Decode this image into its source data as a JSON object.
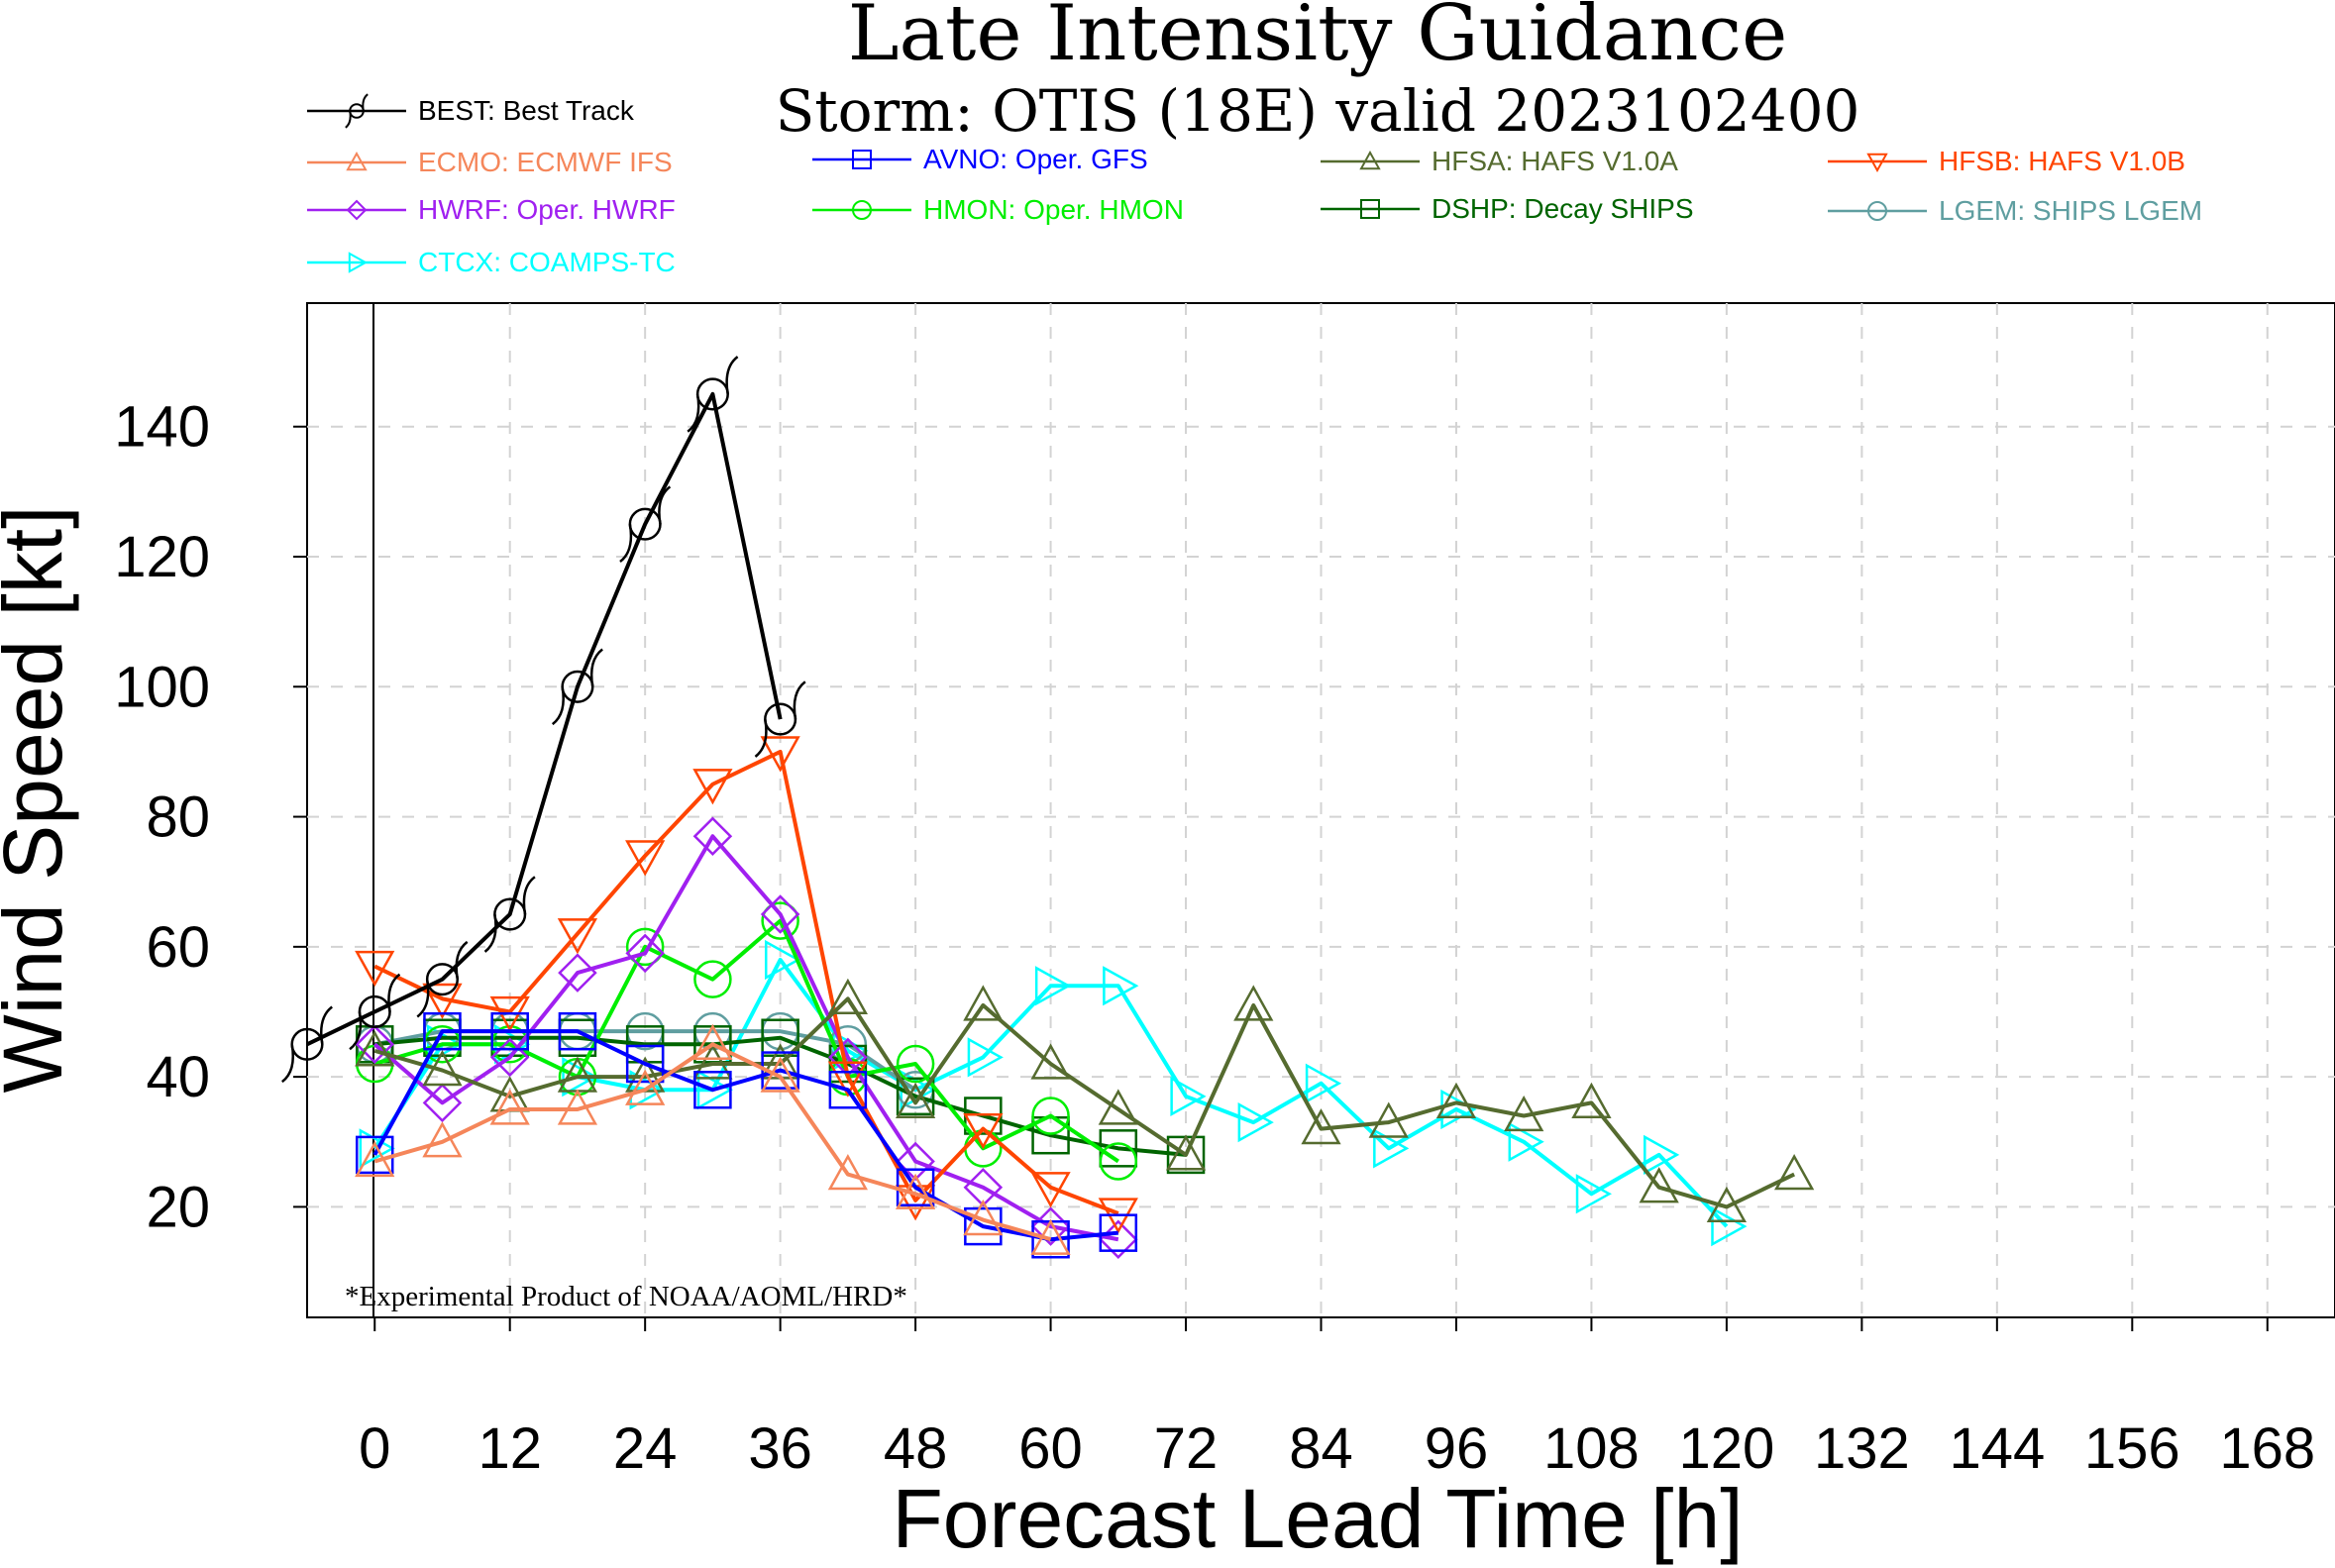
{
  "chart_data": {
    "type": "line",
    "title": "Late Intensity Guidance",
    "subtitle": "Storm: OTIS (18E) valid 2023102400",
    "xlabel": "Forecast Lead Time [h]",
    "ylabel": "Wind Speed [kt]",
    "xlim": [
      -6,
      174
    ],
    "ylim": [
      3,
      159
    ],
    "xticks": [
      0,
      12,
      24,
      36,
      48,
      60,
      72,
      84,
      96,
      108,
      120,
      132,
      144,
      156,
      168
    ],
    "yticks": [
      20,
      40,
      60,
      80,
      100,
      120,
      140
    ],
    "grid": true,
    "footnote": "*Experimental Product of NOAA/AOML/HRD*",
    "legend_position": "top, above plot",
    "series": [
      {
        "id": "BEST",
        "name": "BEST: Best Track",
        "color": "#000000",
        "marker": "hurricane",
        "x": [
          -6,
          0,
          6,
          12,
          18,
          24,
          30,
          36
        ],
        "y": [
          45,
          50,
          55,
          65,
          100,
          125,
          145,
          95
        ]
      },
      {
        "id": "ECMO",
        "name": "ECMO: ECMWF IFS",
        "color": "#f5865a",
        "marker": "triangle-up",
        "x": [
          0,
          6,
          12,
          18,
          24,
          30,
          36,
          42,
          48,
          54,
          60
        ],
        "y": [
          27,
          30,
          35,
          35,
          38,
          45,
          40,
          25,
          22,
          18,
          15
        ]
      },
      {
        "id": "AVNO",
        "name": "AVNO: Oper. GFS",
        "color": "#0000ff",
        "marker": "square",
        "x": [
          0,
          6,
          12,
          18,
          24,
          30,
          36,
          42,
          48,
          54,
          60,
          66
        ],
        "y": [
          28,
          47,
          47,
          47,
          42,
          38,
          41,
          38,
          23,
          17,
          15,
          16
        ]
      },
      {
        "id": "HFSA",
        "name": "HFSA: HAFS V1.0A",
        "color": "#556b2f",
        "marker": "triangle-up",
        "x": [
          0,
          6,
          12,
          18,
          24,
          30,
          36,
          42,
          48,
          54,
          60,
          66,
          72,
          78,
          84,
          90,
          96,
          102,
          108,
          114,
          120,
          126
        ],
        "y": [
          44,
          41,
          37,
          40,
          40,
          42,
          42,
          52,
          36,
          51,
          42,
          35,
          28,
          51,
          32,
          33,
          36,
          34,
          36,
          23,
          20,
          25
        ]
      },
      {
        "id": "HFSB",
        "name": "HFSB: HAFS V1.0B",
        "color": "#ff4500",
        "marker": "triangle-down",
        "x": [
          0,
          6,
          12,
          18,
          24,
          30,
          36,
          42,
          48,
          54,
          60,
          66
        ],
        "y": [
          57,
          52,
          50,
          62,
          74,
          85,
          90,
          40,
          21,
          32,
          23,
          19
        ]
      },
      {
        "id": "HWRF",
        "name": "HWRF: Oper. HWRF",
        "color": "#a020f0",
        "marker": "diamond",
        "x": [
          0,
          6,
          12,
          18,
          24,
          30,
          36,
          42,
          48,
          54,
          60,
          66
        ],
        "y": [
          45,
          36,
          43,
          56,
          59,
          77,
          65,
          43,
          27,
          23,
          17,
          15
        ]
      },
      {
        "id": "HMON",
        "name": "HMON: Oper. HMON",
        "color": "#00ee00",
        "marker": "circle",
        "x": [
          0,
          6,
          12,
          18,
          24,
          30,
          36,
          42,
          48,
          54,
          60,
          66
        ],
        "y": [
          42,
          45,
          45,
          40,
          60,
          55,
          64,
          40,
          42,
          29,
          34,
          27
        ]
      },
      {
        "id": "DSHP",
        "name": "DSHP: Decay SHIPS",
        "color": "#006400",
        "marker": "square",
        "x": [
          0,
          6,
          12,
          18,
          24,
          30,
          36,
          42,
          48,
          54,
          60,
          66,
          72
        ],
        "y": [
          45,
          46,
          46,
          46,
          45,
          45,
          46,
          42,
          37,
          34,
          31,
          29,
          28
        ]
      },
      {
        "id": "LGEM",
        "name": "LGEM: SHIPS LGEM",
        "color": "#5f9ea0",
        "marker": "circle",
        "x": [
          0,
          6,
          12,
          18,
          24,
          30,
          36,
          42,
          48
        ],
        "y": [
          45,
          47,
          47,
          47,
          47,
          47,
          47,
          45,
          38
        ]
      },
      {
        "id": "CTCX",
        "name": "CTCX: COAMPS-TC",
        "color": "#00ffff",
        "marker": "triangle-right",
        "x": [
          0,
          6,
          12,
          18,
          24,
          30,
          36,
          42,
          48,
          54,
          60,
          66,
          72,
          78,
          84,
          90,
          96,
          102,
          108,
          114,
          120
        ],
        "y": [
          29,
          45,
          45,
          40,
          38,
          38,
          58,
          44,
          38,
          43,
          54,
          54,
          37,
          33,
          39,
          29,
          35,
          30,
          22,
          28,
          17
        ]
      }
    ]
  }
}
